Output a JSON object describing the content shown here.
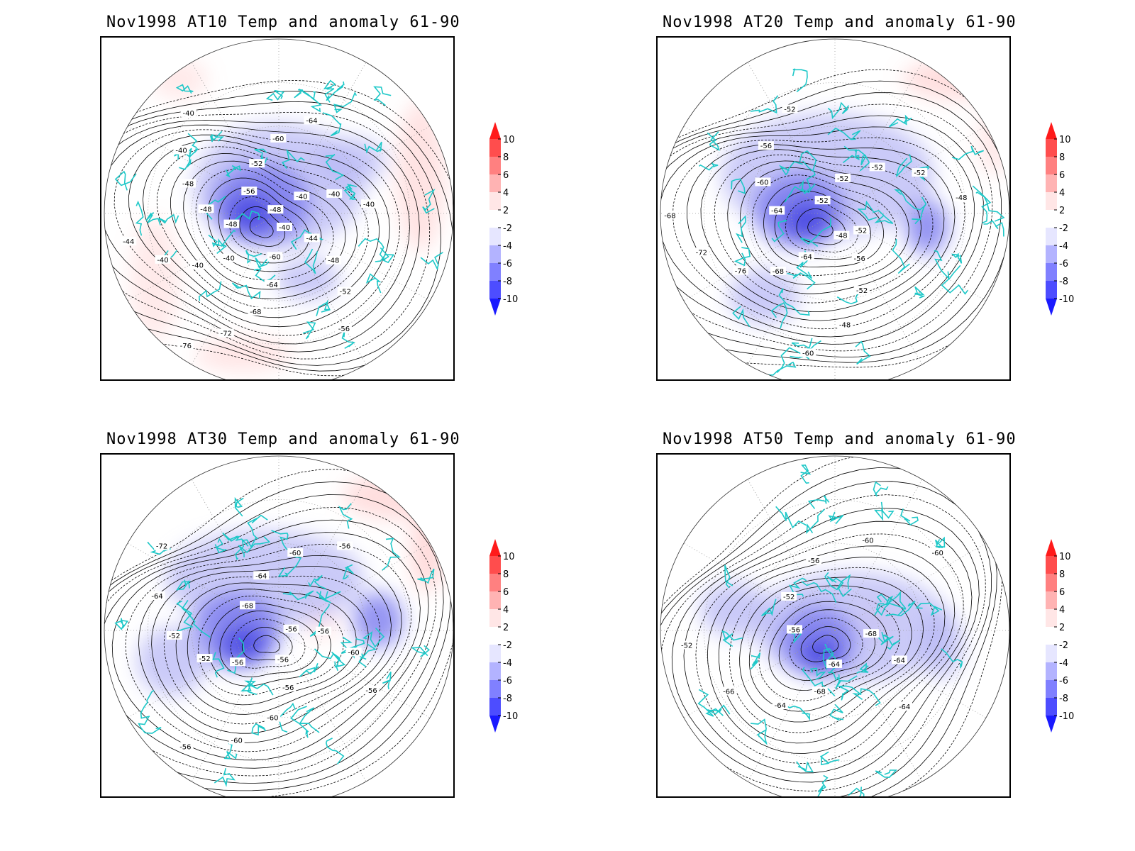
{
  "panels": [
    {
      "title": "Nov1998 AT10 Temp and anomaly 61-90",
      "contour_labels": [
        "-40",
        "-44",
        "-48",
        "-52",
        "-56",
        "-60",
        "-64",
        "-68",
        "-72",
        "-76",
        "-40",
        "-40",
        "-40",
        "-44",
        "-48",
        "-48",
        "-48",
        "-40",
        "-40",
        "-56",
        "-52",
        "-60",
        "-64",
        "-48",
        "-40",
        "-40",
        "-40"
      ],
      "neg_anomaly": [
        [
          0.5,
          0.43,
          0.24,
          0.18,
          1.0
        ],
        [
          0.45,
          0.48,
          0.14,
          0.12,
          2.0
        ],
        [
          0.42,
          0.51,
          0.07,
          0.06,
          3.0
        ],
        [
          0.7,
          0.36,
          0.1,
          0.07,
          0.8
        ],
        [
          0.58,
          0.7,
          0.09,
          0.06,
          0.8
        ]
      ],
      "pos_anomaly": [
        [
          0.9,
          0.4,
          0.07,
          0.22,
          0.8
        ],
        [
          0.22,
          0.12,
          0.08,
          0.06,
          0.6
        ],
        [
          0.4,
          0.92,
          0.14,
          0.05,
          0.7
        ],
        [
          0.15,
          0.7,
          0.07,
          0.18,
          0.6
        ]
      ]
    },
    {
      "title": "Nov1998 AT20 Temp and anomaly 61-90",
      "contour_labels": [
        "-48",
        "-56",
        "-52",
        "-48",
        "-60",
        "-64",
        "-68",
        "-76",
        "-72",
        "-68",
        "-64",
        "-60",
        "-56",
        "-52",
        "-52",
        "-52",
        "-52",
        "-52",
        "-48",
        "-52"
      ],
      "neg_anomaly": [
        [
          0.48,
          0.4,
          0.3,
          0.18,
          1.0
        ],
        [
          0.4,
          0.5,
          0.13,
          0.11,
          2.0
        ],
        [
          0.42,
          0.53,
          0.07,
          0.06,
          3.0
        ],
        [
          0.76,
          0.55,
          0.06,
          0.08,
          1.5
        ],
        [
          0.3,
          0.75,
          0.1,
          0.08,
          0.8
        ]
      ],
      "pos_anomaly": [
        [
          0.85,
          0.12,
          0.16,
          0.06,
          0.9
        ],
        [
          0.95,
          0.3,
          0.05,
          0.1,
          0.6
        ]
      ]
    },
    {
      "title": "Nov1998 AT30 Temp and anomaly 61-90",
      "contour_labels": [
        "-56",
        "-56",
        "-60",
        "-60",
        "-56",
        "-56",
        "-52",
        "-52",
        "-64",
        "-72",
        "-68",
        "-64",
        "-60",
        "-56",
        "-56",
        "-56",
        "-60",
        "-56"
      ],
      "neg_anomaly": [
        [
          0.46,
          0.36,
          0.28,
          0.14,
          1.0
        ],
        [
          0.38,
          0.51,
          0.13,
          0.11,
          2.0
        ],
        [
          0.4,
          0.55,
          0.07,
          0.06,
          3.0
        ],
        [
          0.78,
          0.48,
          0.07,
          0.08,
          1.5
        ],
        [
          0.2,
          0.6,
          0.1,
          0.1,
          0.7
        ]
      ],
      "pos_anomaly": [
        [
          0.84,
          0.12,
          0.16,
          0.07,
          0.9
        ],
        [
          0.92,
          0.28,
          0.05,
          0.12,
          1.0
        ],
        [
          0.62,
          0.48,
          0.05,
          0.06,
          0.6
        ]
      ]
    },
    {
      "title": "Nov1998 AT50 Temp and anomaly 61-90",
      "contour_labels": [
        "-64",
        "-68",
        "-64",
        "-66",
        "-52",
        "-56",
        "-52",
        "-56",
        "-60",
        "-60",
        "-68",
        "-64",
        "-64"
      ],
      "neg_anomaly": [
        [
          0.55,
          0.5,
          0.28,
          0.16,
          0.9
        ],
        [
          0.45,
          0.54,
          0.11,
          0.1,
          1.8
        ],
        [
          0.46,
          0.58,
          0.06,
          0.05,
          2.6
        ],
        [
          0.8,
          0.55,
          0.06,
          0.1,
          1.0
        ],
        [
          0.22,
          0.45,
          0.1,
          0.08,
          0.7
        ]
      ],
      "pos_anomaly": [
        [
          0.62,
          0.48,
          0.05,
          0.05,
          0.5
        ]
      ]
    }
  ],
  "colorbar_labels": [
    "10",
    "8",
    "6",
    "4",
    "2",
    "-2",
    "-4",
    "-6",
    "-8",
    "-10"
  ],
  "colorbar_colors": [
    "#ff1a1a",
    "#ff4d4d",
    "#ff8080",
    "#ffb3b3",
    "#ffe6e6",
    "#ffffff",
    "#e6e6ff",
    "#b3b3ff",
    "#8080ff",
    "#4d4dff",
    "#1a1aff"
  ],
  "colors": {
    "coast": "#1ec8c8",
    "contour": "#000000",
    "grid": "#999999"
  }
}
